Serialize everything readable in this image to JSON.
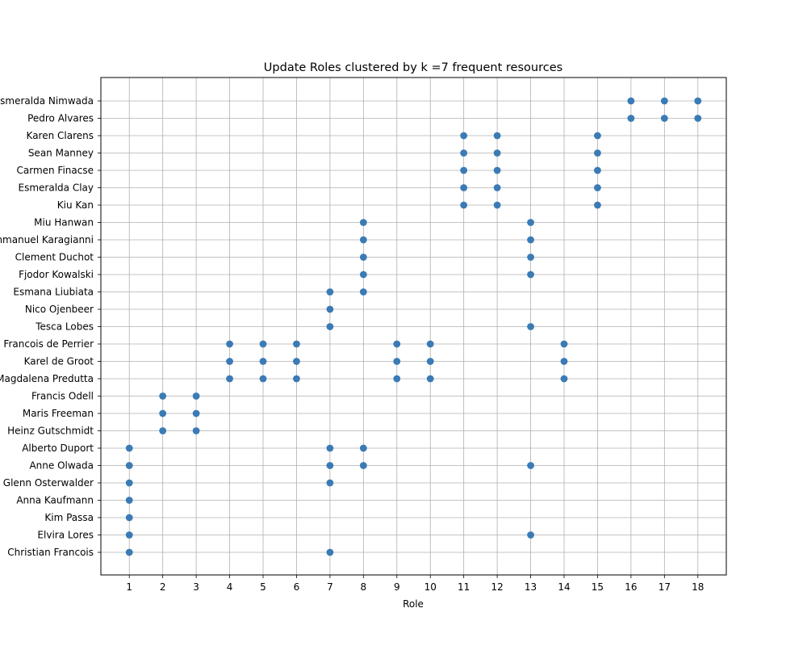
{
  "chart_data": {
    "type": "scatter",
    "title": "Update Roles clustered by k =7 frequent resources",
    "xlabel": "Role",
    "ylabel": "",
    "x_ticks": [
      1,
      2,
      3,
      4,
      5,
      6,
      7,
      8,
      9,
      10,
      11,
      12,
      13,
      14,
      15,
      16,
      17,
      18
    ],
    "xlim": [
      0.15,
      18.85
    ],
    "grid": true,
    "legend": "none",
    "marker_color": "#3b7bb5",
    "grid_color": "#b0b0b0",
    "y_categories": [
      "Christian Francois",
      "Elvira Lores",
      "Kim Passa",
      "Anna Kaufmann",
      "Glenn Osterwalder",
      "Anne Olwada",
      "Alberto Duport",
      "Heinz Gutschmidt",
      "Maris Freeman",
      "Francis Odell",
      "Magdalena Predutta",
      "Karel de Groot",
      "Francois de Perrier",
      "Tesca Lobes",
      "Nico Ojenbeer",
      "Esmana Liubiata",
      "Fjodor Kowalski",
      "Clement Duchot",
      "Emmanuel Karagianni",
      "Miu Hanwan",
      "Kiu Kan",
      "Esmeralda Clay",
      "Carmen Finacse",
      "Sean Manney",
      "Karen Clarens",
      "Pedro Alvares",
      "Esmeralda Nimwada"
    ],
    "points": [
      {
        "y": "Christian Francois",
        "roles": [
          1,
          7
        ]
      },
      {
        "y": "Elvira Lores",
        "roles": [
          1,
          13
        ]
      },
      {
        "y": "Kim Passa",
        "roles": [
          1
        ]
      },
      {
        "y": "Anna Kaufmann",
        "roles": [
          1
        ]
      },
      {
        "y": "Glenn Osterwalder",
        "roles": [
          1,
          7
        ]
      },
      {
        "y": "Anne Olwada",
        "roles": [
          1,
          7,
          8,
          13
        ]
      },
      {
        "y": "Alberto Duport",
        "roles": [
          1,
          7,
          8
        ]
      },
      {
        "y": "Heinz Gutschmidt",
        "roles": [
          2,
          3
        ]
      },
      {
        "y": "Maris Freeman",
        "roles": [
          2,
          3
        ]
      },
      {
        "y": "Francis Odell",
        "roles": [
          2,
          3
        ]
      },
      {
        "y": "Magdalena Predutta",
        "roles": [
          4,
          5,
          6,
          9,
          10,
          14
        ]
      },
      {
        "y": "Karel de Groot",
        "roles": [
          4,
          5,
          6,
          9,
          10,
          14
        ]
      },
      {
        "y": "Francois de Perrier",
        "roles": [
          4,
          5,
          6,
          9,
          10,
          14
        ]
      },
      {
        "y": "Tesca Lobes",
        "roles": [
          7,
          13
        ]
      },
      {
        "y": "Nico Ojenbeer",
        "roles": [
          7
        ]
      },
      {
        "y": "Esmana Liubiata",
        "roles": [
          7,
          8
        ]
      },
      {
        "y": "Fjodor Kowalski",
        "roles": [
          8,
          13
        ]
      },
      {
        "y": "Clement Duchot",
        "roles": [
          8,
          13
        ]
      },
      {
        "y": "Emmanuel Karagianni",
        "roles": [
          8,
          13
        ]
      },
      {
        "y": "Miu Hanwan",
        "roles": [
          8,
          13
        ]
      },
      {
        "y": "Kiu Kan",
        "roles": [
          11,
          12,
          15
        ]
      },
      {
        "y": "Esmeralda Clay",
        "roles": [
          11,
          12,
          15
        ]
      },
      {
        "y": "Carmen Finacse",
        "roles": [
          11,
          12,
          15
        ]
      },
      {
        "y": "Sean Manney",
        "roles": [
          11,
          12,
          15
        ]
      },
      {
        "y": "Karen Clarens",
        "roles": [
          11,
          12,
          15
        ]
      },
      {
        "y": "Pedro Alvares",
        "roles": [
          16,
          17,
          18
        ]
      },
      {
        "y": "Esmeralda Nimwada",
        "roles": [
          16,
          17,
          18
        ]
      }
    ]
  }
}
